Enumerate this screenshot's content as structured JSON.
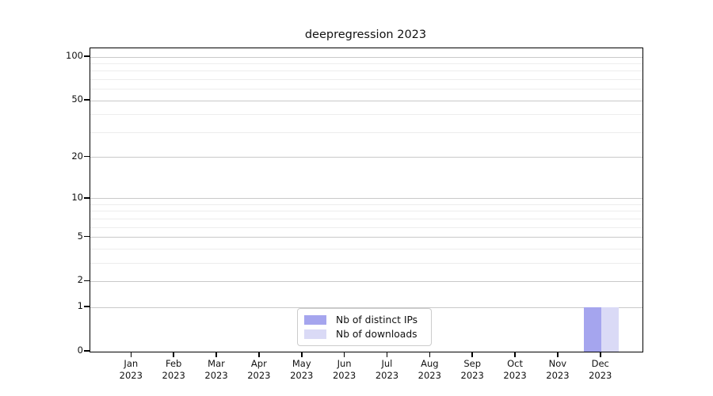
{
  "title": "deepregression 2023",
  "legend": {
    "items": [
      {
        "label": "Nb of distinct IPs",
        "color": "#a5a5ee"
      },
      {
        "label": "Nb of downloads",
        "color": "#dadaf6"
      }
    ]
  },
  "chart_data": {
    "type": "bar",
    "title": "deepregression 2023",
    "categories": [
      "Jan 2023",
      "Feb 2023",
      "Mar 2023",
      "Apr 2023",
      "May 2023",
      "Jun 2023",
      "Jul 2023",
      "Aug 2023",
      "Sep 2023",
      "Oct 2023",
      "Nov 2023",
      "Dec 2023"
    ],
    "series": [
      {
        "name": "Nb of distinct IPs",
        "color": "#a5a5ee",
        "values": [
          0,
          0,
          0,
          0,
          0,
          0,
          0,
          0,
          0,
          0,
          0,
          1
        ]
      },
      {
        "name": "Nb of downloads",
        "color": "#dadaf6",
        "values": [
          0,
          0,
          0,
          0,
          0,
          0,
          0,
          0,
          0,
          0,
          0,
          1
        ]
      }
    ],
    "xlabel": "",
    "ylabel": "",
    "yscale": "log1p",
    "ylim": [
      0,
      115
    ],
    "yticks": [
      0,
      1,
      2,
      5,
      10,
      20,
      50,
      100
    ],
    "minor_yticks": [
      3,
      4,
      6,
      7,
      8,
      9,
      30,
      40,
      60,
      70,
      80,
      90
    ],
    "grid": "horizontal",
    "legend_position": "inside-bottom-center",
    "colors": {
      "major_grid": "#c9c9c9",
      "minor_grid": "#ededed",
      "axis": "#000000",
      "background": "#ffffff"
    }
  }
}
